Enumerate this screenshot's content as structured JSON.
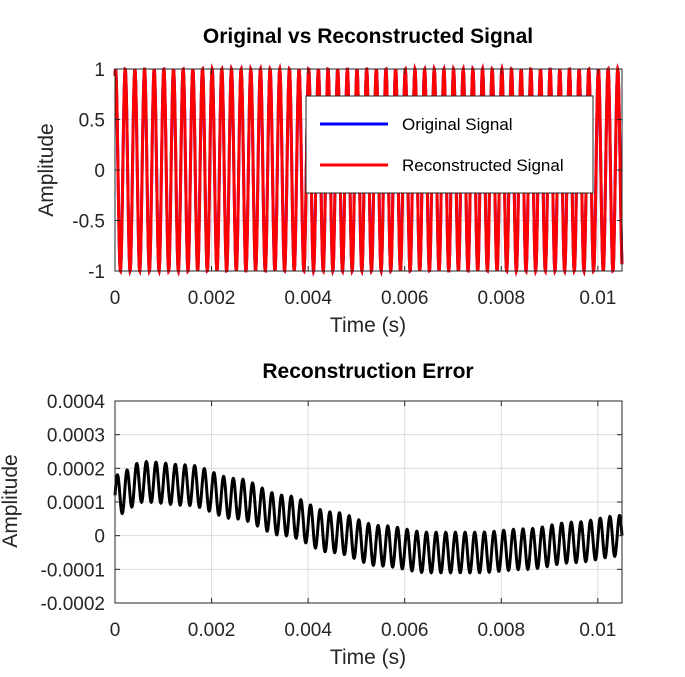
{
  "chart_data": [
    {
      "type": "line",
      "title": "Original vs Reconstructed Signal",
      "xlabel": "Time (s)",
      "ylabel": "Amplitude",
      "xlim": [
        0,
        0.0105
      ],
      "ylim": [
        -1,
        1
      ],
      "xticks": [
        0,
        0.002,
        0.004,
        0.006,
        0.008,
        0.01
      ],
      "xtick_labels": [
        "0",
        "0.002",
        "0.004",
        "0.006",
        "0.008",
        "0.01"
      ],
      "yticks": [
        -1,
        -0.5,
        0,
        0.5,
        1
      ],
      "ytick_labels": [
        "-1",
        "-0.5",
        "0",
        "0.5",
        "1"
      ],
      "grid": true,
      "legend": "top-right",
      "signal": {
        "function": "sin",
        "frequency_hz": 5000,
        "amplitude": 1,
        "phase_rad": 1.2
      },
      "series": [
        {
          "name": "Original Signal",
          "color": "#0000ff"
        },
        {
          "name": "Reconstructed Signal",
          "color": "#ff0000"
        }
      ]
    },
    {
      "type": "line",
      "title": "Reconstruction Error",
      "xlabel": "Time (s)",
      "ylabel": "Amplitude",
      "xlim": [
        0,
        0.0105
      ],
      "ylim": [
        -0.0002,
        0.0004
      ],
      "xticks": [
        0,
        0.002,
        0.004,
        0.006,
        0.008,
        0.01
      ],
      "xtick_labels": [
        "0",
        "0.002",
        "0.004",
        "0.006",
        "0.008",
        "0.01"
      ],
      "yticks": [
        -0.0002,
        -0.0001,
        0,
        0.0001,
        0.0002,
        0.0003,
        0.0004
      ],
      "ytick_labels": [
        "-0.0002",
        "-0.0001",
        "0",
        "0.0001",
        "0.0002",
        "0.0003",
        "0.0004"
      ],
      "grid": true,
      "series": [
        {
          "color": "#000000",
          "frequency_hz": 5000,
          "oscillation_amplitude": 6e-05,
          "center_points": [
            [
              0,
              0.00012
            ],
            [
              0.0006,
              0.00016
            ],
            [
              0.0015,
              0.00015
            ],
            [
              0.0025,
              0.00011
            ],
            [
              0.0035,
              6e-05
            ],
            [
              0.0045,
              1e-05
            ],
            [
              0.0055,
              -3e-05
            ],
            [
              0.0065,
              -5e-05
            ],
            [
              0.0075,
              -5e-05
            ],
            [
              0.0085,
              -4e-05
            ],
            [
              0.0095,
              -2e-05
            ],
            [
              0.0105,
              0.0
            ]
          ]
        }
      ]
    }
  ]
}
